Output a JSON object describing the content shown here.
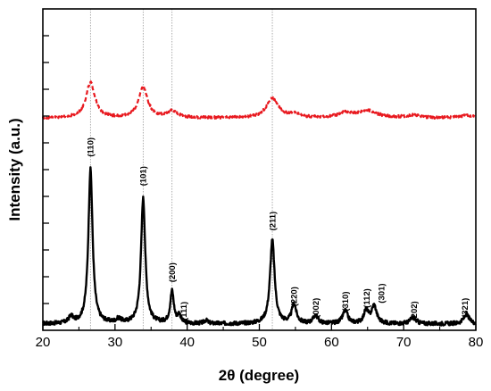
{
  "chart_data": {
    "type": "line",
    "xlabel": "2θ (degree)",
    "ylabel": "Intensity (a.u.)",
    "xlim": [
      20,
      80
    ],
    "x_ticks": [
      20,
      30,
      40,
      50,
      60,
      70,
      80
    ],
    "y_ticks_labeled": false,
    "grid": false,
    "legend": "none",
    "reference_lines_2theta": [
      26.6,
      33.9,
      37.9,
      51.8
    ],
    "series": [
      {
        "style": "solid",
        "color": "#000000",
        "baseline": 0.02,
        "noise": 0.006,
        "peaks": [
          {
            "x": 23.9,
            "h": 0.02,
            "w": 0.35
          },
          {
            "x": 26.6,
            "h": 0.48,
            "w": 0.35
          },
          {
            "x": 30.5,
            "h": 0.012,
            "w": 0.4
          },
          {
            "x": 33.9,
            "h": 0.39,
            "w": 0.35
          },
          {
            "x": 37.9,
            "h": 0.1,
            "w": 0.3
          },
          {
            "x": 38.9,
            "h": 0.025,
            "w": 0.25
          },
          {
            "x": 42.6,
            "h": 0.01,
            "w": 0.3
          },
          {
            "x": 51.8,
            "h": 0.26,
            "w": 0.38
          },
          {
            "x": 54.8,
            "h": 0.06,
            "w": 0.38
          },
          {
            "x": 57.8,
            "h": 0.025,
            "w": 0.4
          },
          {
            "x": 61.9,
            "h": 0.04,
            "w": 0.42
          },
          {
            "x": 64.8,
            "h": 0.04,
            "w": 0.38
          },
          {
            "x": 65.9,
            "h": 0.055,
            "w": 0.42
          },
          {
            "x": 71.3,
            "h": 0.02,
            "w": 0.45
          },
          {
            "x": 78.7,
            "h": 0.03,
            "w": 0.45
          }
        ]
      },
      {
        "style": "dashed",
        "color": "#e8191f",
        "baseline": 0.66,
        "noise": 0.004,
        "peaks": [
          {
            "x": 26.6,
            "h": 0.11,
            "w": 0.75
          },
          {
            "x": 33.9,
            "h": 0.095,
            "w": 0.75
          },
          {
            "x": 37.9,
            "h": 0.02,
            "w": 0.9
          },
          {
            "x": 51.8,
            "h": 0.06,
            "w": 1.0
          },
          {
            "x": 54.8,
            "h": 0.012,
            "w": 0.9
          },
          {
            "x": 61.9,
            "h": 0.015,
            "w": 1.2
          },
          {
            "x": 65.0,
            "h": 0.022,
            "w": 1.6
          },
          {
            "x": 71.3,
            "h": 0.008,
            "w": 1.2
          },
          {
            "x": 78.7,
            "h": 0.008,
            "w": 1.2
          }
        ]
      }
    ],
    "peak_labels": [
      {
        "text": "(110)",
        "x": 26.6,
        "y": 0.57
      },
      {
        "text": "(101)",
        "x": 33.9,
        "y": 0.48
      },
      {
        "text": "(200)",
        "x": 37.9,
        "y": 0.18
      },
      {
        "text": "(111)",
        "x": 39.5,
        "y": 0.06
      },
      {
        "text": "(211)",
        "x": 51.8,
        "y": 0.34
      },
      {
        "text": "(220)",
        "x": 54.8,
        "y": 0.105
      },
      {
        "text": "(002)",
        "x": 57.8,
        "y": 0.07
      },
      {
        "text": "(310)",
        "x": 61.9,
        "y": 0.09
      },
      {
        "text": "(112)",
        "x": 64.9,
        "y": 0.1
      },
      {
        "text": "(301)",
        "x": 66.9,
        "y": 0.115
      },
      {
        "text": "(202)",
        "x": 71.4,
        "y": 0.06
      },
      {
        "text": "(321)",
        "x": 78.5,
        "y": 0.07
      }
    ]
  }
}
